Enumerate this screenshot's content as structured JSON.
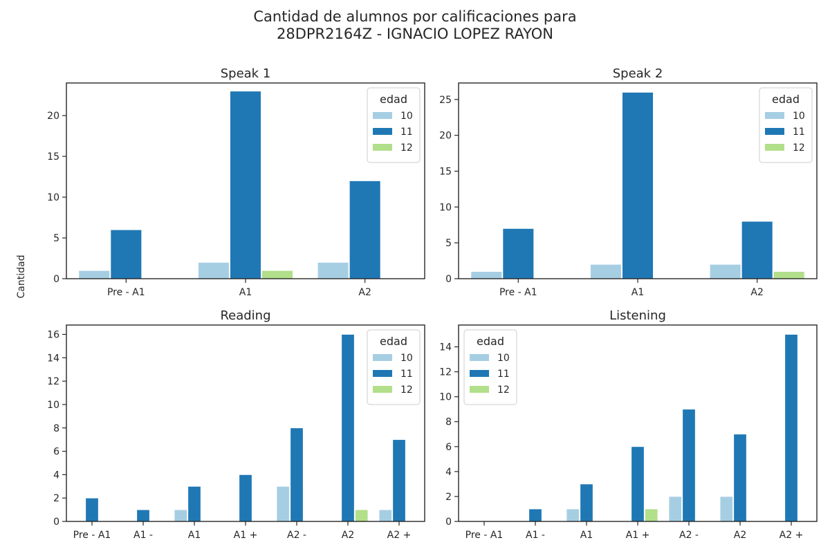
{
  "figure": {
    "suptitle_line1": "Cantidad de alumnos por calificaciones para",
    "suptitle_line2": "28DPR2164Z - IGNACIO LOPEZ RAYON",
    "ylabel": "Cantidad"
  },
  "colors": {
    "10": "#a6cee3",
    "11": "#1f78b4",
    "12": "#b2df8a"
  },
  "chart_data": [
    {
      "type": "bar",
      "title": "Speak 1",
      "categories": [
        "Pre - A1",
        "A1",
        "A2"
      ],
      "series": [
        {
          "name": "10",
          "values": [
            1,
            2,
            2
          ]
        },
        {
          "name": "11",
          "values": [
            6,
            23,
            12
          ]
        },
        {
          "name": "12",
          "values": [
            0,
            1,
            0
          ]
        }
      ],
      "ylim": [
        0,
        24
      ],
      "yticks": [
        0,
        5,
        10,
        15,
        20
      ],
      "legend": {
        "title": "edad",
        "position": "upper right"
      }
    },
    {
      "type": "bar",
      "title": "Speak 2",
      "categories": [
        "Pre - A1",
        "A1",
        "A2"
      ],
      "series": [
        {
          "name": "10",
          "values": [
            1,
            2,
            2
          ]
        },
        {
          "name": "11",
          "values": [
            7,
            26,
            8
          ]
        },
        {
          "name": "12",
          "values": [
            0,
            0,
            1
          ]
        }
      ],
      "ylim": [
        0,
        27.3
      ],
      "yticks": [
        0,
        5,
        10,
        15,
        20,
        25
      ],
      "legend": {
        "title": "edad",
        "position": "upper right"
      }
    },
    {
      "type": "bar",
      "title": "Reading",
      "categories": [
        "Pre - A1",
        "A1 -",
        "A1",
        "A1 +",
        "A2 -",
        "A2",
        "A2 +"
      ],
      "series": [
        {
          "name": "10",
          "values": [
            0,
            0,
            1,
            0,
            3,
            0,
            1
          ]
        },
        {
          "name": "11",
          "values": [
            2,
            1,
            3,
            4,
            8,
            16,
            7
          ]
        },
        {
          "name": "12",
          "values": [
            0,
            0,
            0,
            0,
            0,
            1,
            0
          ]
        }
      ],
      "ylim": [
        0,
        16.8
      ],
      "yticks": [
        0,
        2,
        4,
        6,
        8,
        10,
        12,
        14,
        16
      ],
      "legend": {
        "title": "edad",
        "position": "upper right"
      }
    },
    {
      "type": "bar",
      "title": "Listening",
      "categories": [
        "Pre - A1",
        "A1 -",
        "A1",
        "A1 +",
        "A2 -",
        "A2",
        "A2 +"
      ],
      "series": [
        {
          "name": "10",
          "values": [
            0,
            0,
            1,
            0,
            2,
            2,
            0
          ]
        },
        {
          "name": "11",
          "values": [
            0,
            1,
            3,
            6,
            9,
            7,
            15
          ]
        },
        {
          "name": "12",
          "values": [
            0,
            0,
            0,
            1,
            0,
            0,
            0
          ]
        }
      ],
      "ylim": [
        0,
        15.75
      ],
      "yticks": [
        0,
        2,
        4,
        6,
        8,
        10,
        12,
        14
      ],
      "legend": {
        "title": "edad",
        "position": "upper left"
      }
    }
  ]
}
